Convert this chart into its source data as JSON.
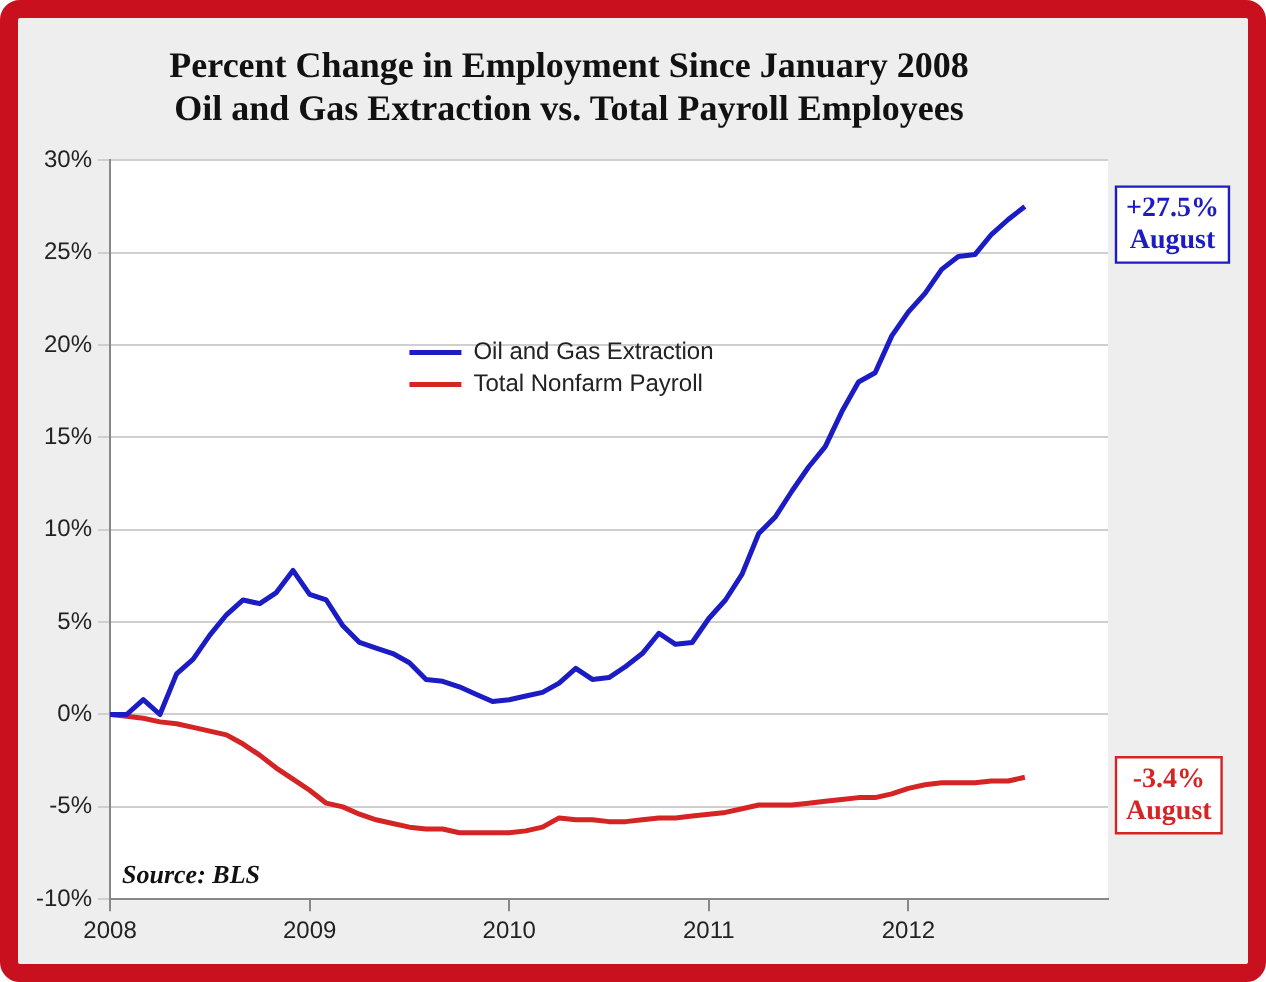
{
  "chart_data": {
    "type": "line",
    "title": "Percent Change in Employment Since January 2008",
    "subtitle": "Oil and Gas Extraction vs. Total Payroll Employees",
    "x": [
      "2008-01",
      "2008-02",
      "2008-03",
      "2008-04",
      "2008-05",
      "2008-06",
      "2008-07",
      "2008-08",
      "2008-09",
      "2008-10",
      "2008-11",
      "2008-12",
      "2009-01",
      "2009-02",
      "2009-03",
      "2009-04",
      "2009-05",
      "2009-06",
      "2009-07",
      "2009-08",
      "2009-09",
      "2009-10",
      "2009-11",
      "2009-12",
      "2010-01",
      "2010-02",
      "2010-03",
      "2010-04",
      "2010-05",
      "2010-06",
      "2010-07",
      "2010-08",
      "2010-09",
      "2010-10",
      "2010-11",
      "2010-12",
      "2011-01",
      "2011-02",
      "2011-03",
      "2011-04",
      "2011-05",
      "2011-06",
      "2011-07",
      "2011-08",
      "2011-09",
      "2011-10",
      "2011-11",
      "2011-12",
      "2012-01",
      "2012-02",
      "2012-03",
      "2012-04",
      "2012-05",
      "2012-06",
      "2012-07",
      "2012-08"
    ],
    "series": [
      {
        "name": "Oil and Gas Extraction",
        "color": "#1c1cc4",
        "values": [
          0,
          0,
          0.8,
          0,
          2.2,
          3.0,
          4.3,
          5.4,
          6.2,
          6.0,
          6.6,
          7.8,
          6.5,
          6.2,
          4.8,
          3.9,
          3.6,
          3.3,
          2.8,
          1.9,
          1.8,
          1.5,
          1.1,
          0.7,
          0.8,
          1.0,
          1.2,
          1.7,
          2.5,
          1.9,
          2.0,
          2.6,
          3.3,
          4.4,
          3.8,
          3.9,
          5.2,
          6.2,
          7.6,
          9.8,
          10.7,
          12.1,
          13.4,
          14.5,
          16.4,
          18.0,
          18.5,
          20.5,
          21.8,
          22.8,
          24.1,
          24.8,
          24.9,
          26.0,
          26.8,
          27.5
        ]
      },
      {
        "name": "Total Nonfarm Payroll",
        "color": "#d42424",
        "values": [
          0,
          -0.1,
          -0.2,
          -0.4,
          -0.5,
          -0.7,
          -0.9,
          -1.1,
          -1.6,
          -2.2,
          -2.9,
          -3.5,
          -4.1,
          -4.8,
          -5.0,
          -5.4,
          -5.7,
          -5.9,
          -6.1,
          -6.2,
          -6.2,
          -6.4,
          -6.4,
          -6.4,
          -6.4,
          -6.3,
          -6.1,
          -5.6,
          -5.7,
          -5.7,
          -5.8,
          -5.8,
          -5.7,
          -5.6,
          -5.6,
          -5.5,
          -5.4,
          -5.3,
          -5.1,
          -4.9,
          -4.9,
          -4.9,
          -4.8,
          -4.7,
          -4.6,
          -4.5,
          -4.5,
          -4.3,
          -4.0,
          -3.8,
          -3.7,
          -3.7,
          -3.7,
          -3.6,
          -3.6,
          -3.4
        ]
      }
    ],
    "xlim": [
      "2008",
      "2013"
    ],
    "xticks": [
      "2008",
      "2009",
      "2010",
      "2011",
      "2012"
    ],
    "ylim": [
      -10,
      30
    ],
    "yticks": [
      {
        "value": -10,
        "label": "-10%"
      },
      {
        "value": -5,
        "label": "-5%"
      },
      {
        "value": 0,
        "label": "0%"
      },
      {
        "value": 5,
        "label": "5%"
      },
      {
        "value": 10,
        "label": "10%"
      },
      {
        "value": 15,
        "label": "15%"
      },
      {
        "value": 20,
        "label": "20%"
      },
      {
        "value": 25,
        "label": "25%"
      },
      {
        "value": 30,
        "label": "30%"
      }
    ],
    "annotations": [
      "+27.5%\nAugust",
      "-3.4%\nAugust",
      "Source: BLS"
    ],
    "grid": "y",
    "legend": "top",
    "marker": "none",
    "line_style": "solid"
  }
}
